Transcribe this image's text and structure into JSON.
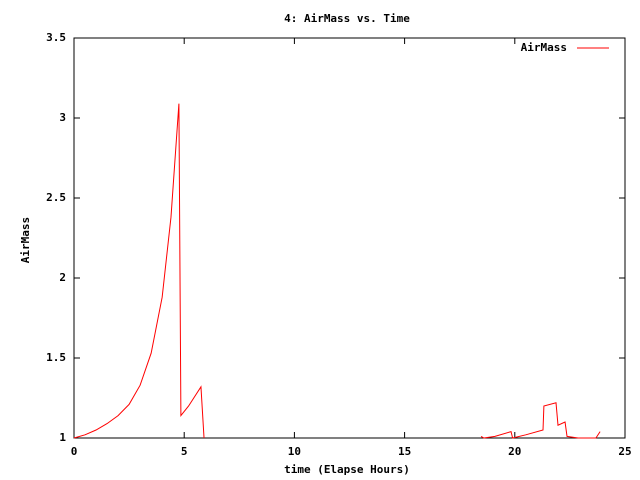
{
  "chart_data": {
    "type": "line",
    "title": "4: AirMass vs. Time",
    "x_label": "time (Elapse Hours)",
    "y_label": "AirMass",
    "x": [
      0,
      0.5,
      1,
      1.5,
      2,
      2.5,
      3,
      3.5,
      4,
      4.4,
      4.76,
      4.85,
      5.2,
      5.76,
      5.9,
      12,
      18.47,
      18.6,
      19.1,
      19.83,
      19.9,
      20.5,
      21.28,
      21.32,
      21.87,
      21.96,
      22.28,
      22.37,
      22.87,
      23.4,
      23.68,
      23.87
    ],
    "series": [
      {
        "name": "AirMass",
        "color": "#ff0000",
        "values": [
          1.0,
          1.02,
          1.05,
          1.09,
          1.14,
          1.21,
          1.33,
          1.53,
          1.88,
          2.38,
          3.09,
          1.14,
          1.2,
          1.32,
          1.0,
          null,
          1.01,
          1.0,
          1.01,
          1.04,
          1.0,
          1.02,
          1.05,
          1.2,
          1.22,
          1.08,
          1.1,
          1.01,
          1.0,
          1.0,
          1.0,
          1.04
        ]
      }
    ],
    "xlim": [
      0,
      25
    ],
    "xticks": [
      0,
      5,
      10,
      15,
      20,
      25
    ],
    "ylim": [
      1,
      3.5
    ],
    "yticks": [
      1,
      1.5,
      2,
      2.5,
      3,
      3.5
    ],
    "grid": false,
    "legend": "top-right"
  }
}
